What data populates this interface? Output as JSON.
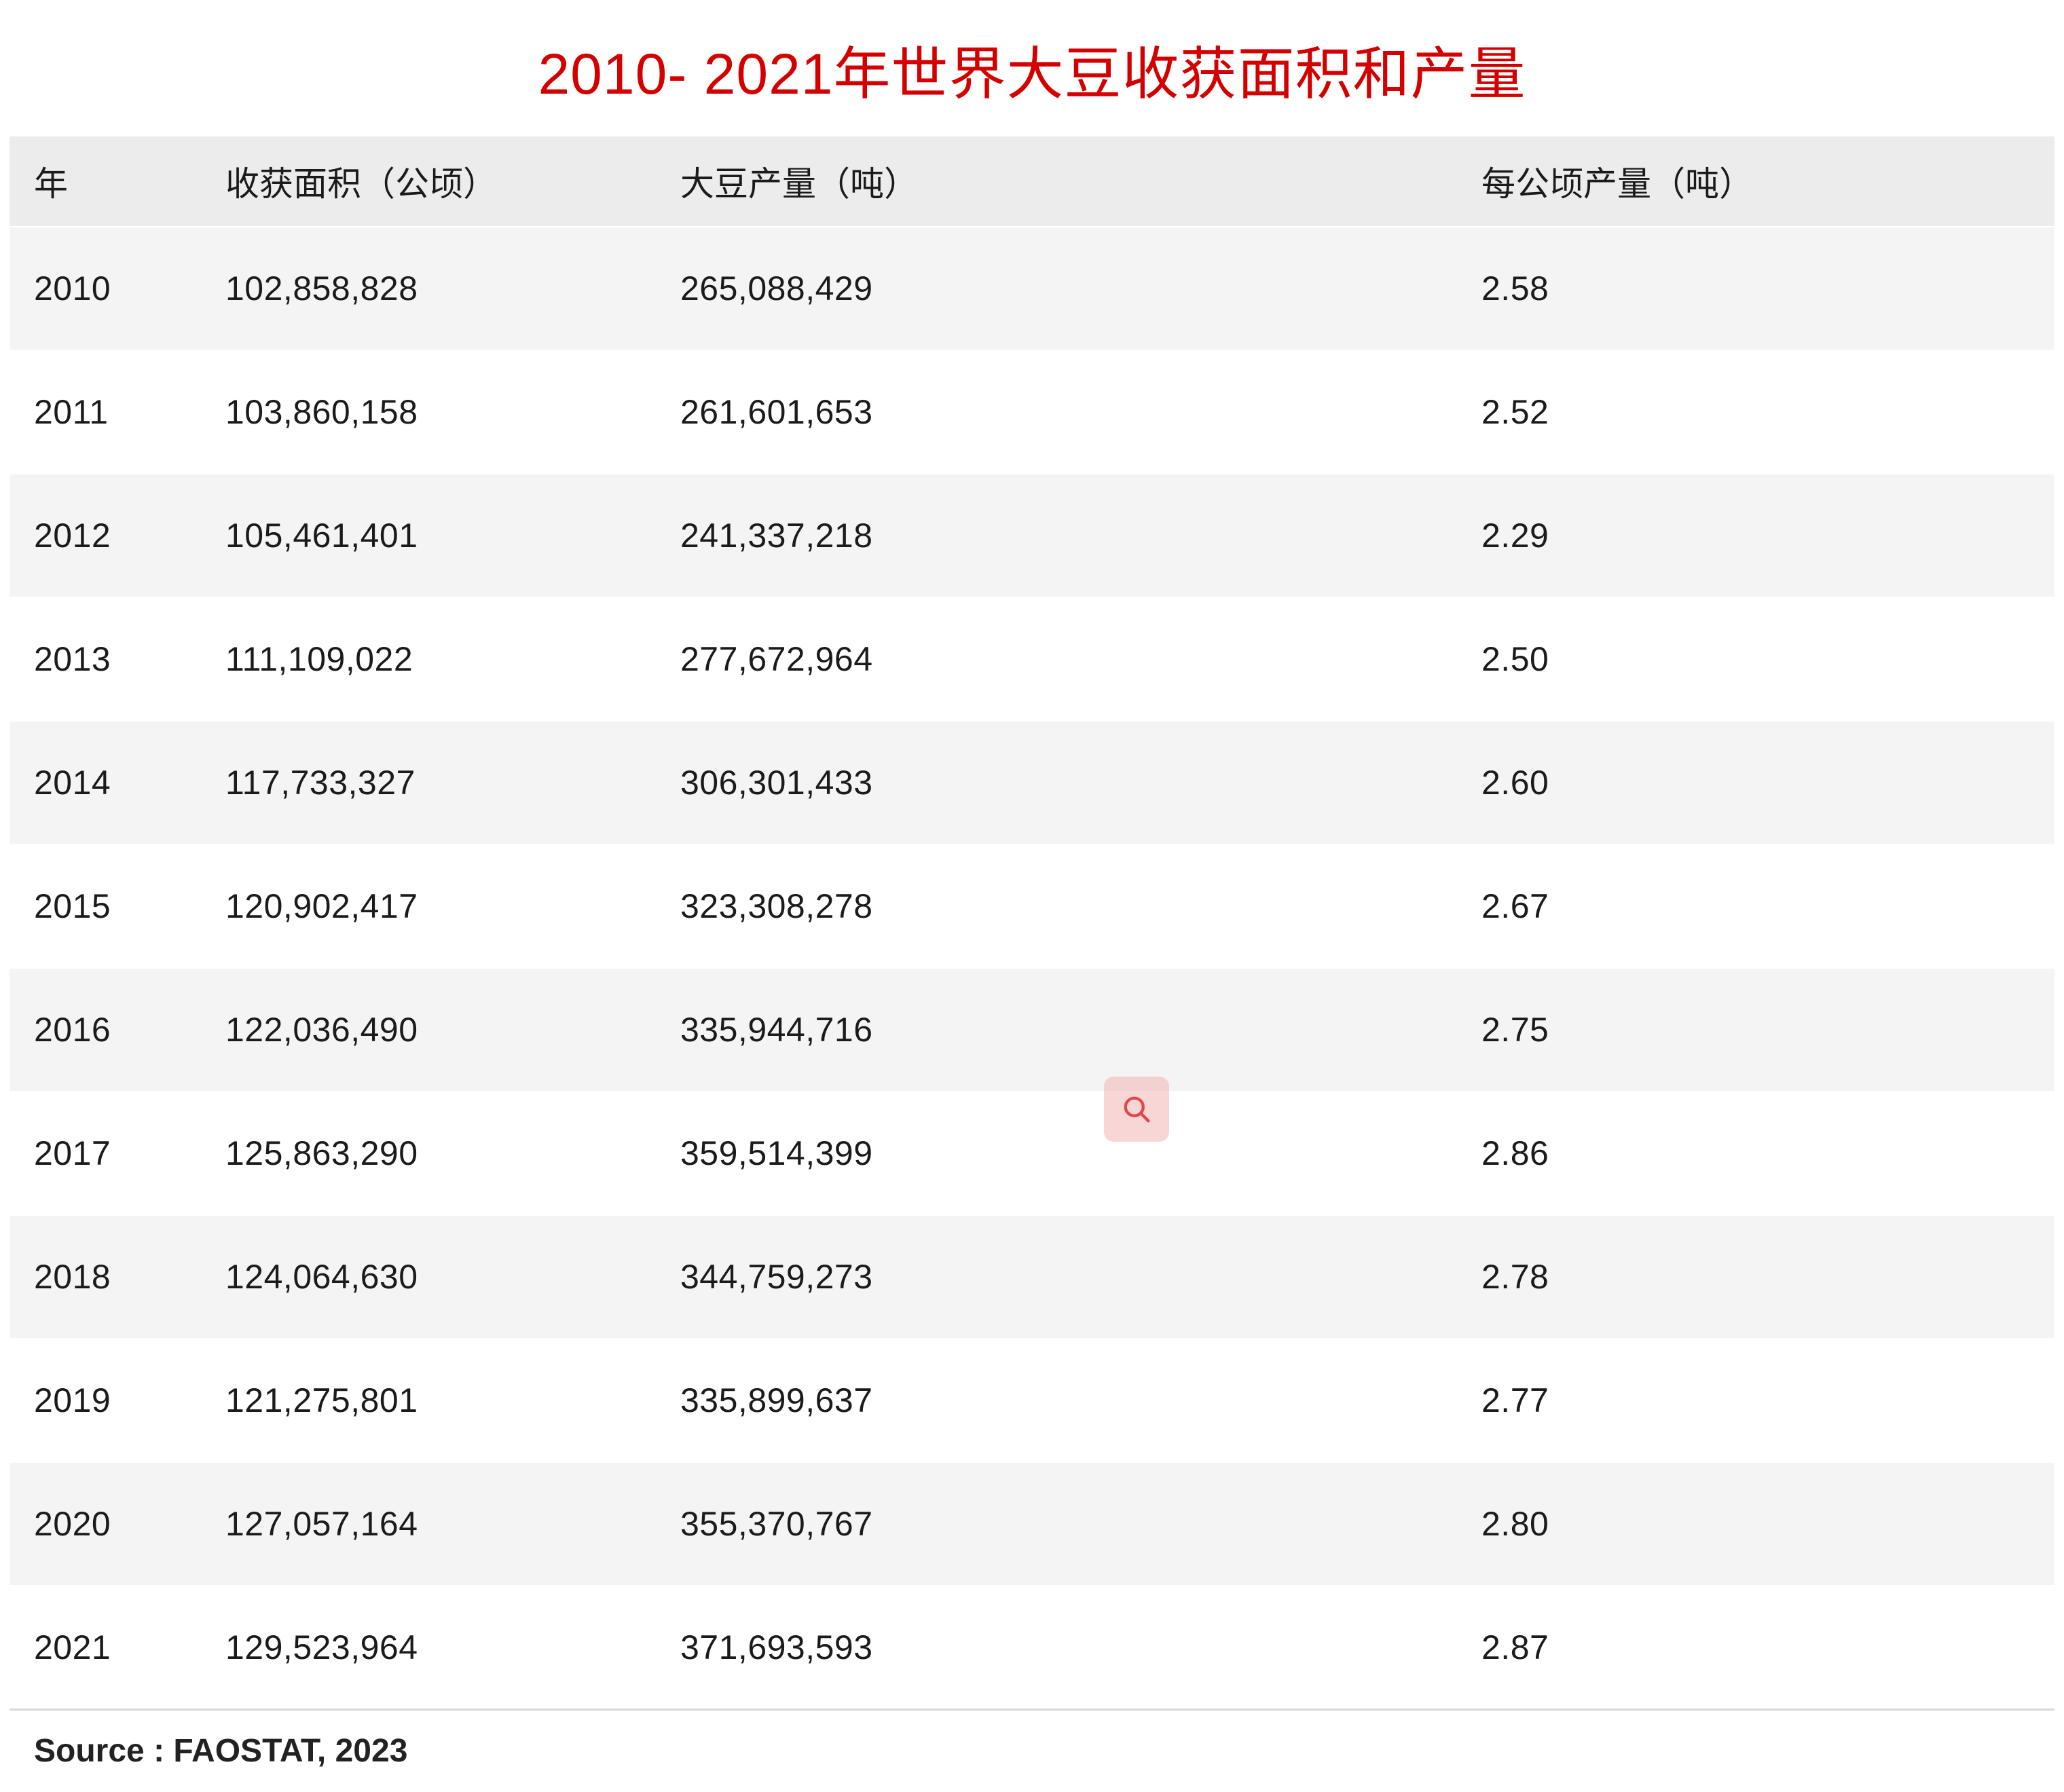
{
  "title": "2010- 2021年世界大豆收获面积和产量",
  "table": {
    "headers": [
      "年",
      "收获面积（公顷）",
      "大豆产量（吨）",
      "每公顷产量（吨）"
    ],
    "rows": [
      [
        "2010",
        "102,858,828",
        "265,088,429",
        "2.58"
      ],
      [
        "2011",
        "103,860,158",
        "261,601,653",
        "2.52"
      ],
      [
        "2012",
        "105,461,401",
        "241,337,218",
        "2.29"
      ],
      [
        "2013",
        "111,109,022",
        "277,672,964",
        "2.50"
      ],
      [
        "2014",
        "117,733,327",
        "306,301,433",
        "2.60"
      ],
      [
        "2015",
        "120,902,417",
        "323,308,278",
        "2.67"
      ],
      [
        "2016",
        "122,036,490",
        "335,944,716",
        "2.75"
      ],
      [
        "2017",
        "125,863,290",
        "359,514,399",
        "2.86"
      ],
      [
        "2018",
        "124,064,630",
        "344,759,273",
        "2.78"
      ],
      [
        "2019",
        "121,275,801",
        "335,899,637",
        "2.77"
      ],
      [
        "2020",
        "127,057,164",
        "355,370,767",
        "2.80"
      ],
      [
        "2021",
        "129,523,964",
        "371,693,593",
        "2.87"
      ]
    ]
  },
  "source": "Source : FAOSTAT, 2023",
  "icons": {
    "search": "magnifier"
  },
  "colors": {
    "title_red": "#d40000",
    "header_bg": "#ececec",
    "row_stripe_bg": "#f4f4f4",
    "text": "#1b1b1b",
    "search_badge_bg": "#f4b4b4",
    "search_glyph": "#e04848"
  },
  "chart_data": {
    "type": "table",
    "title": "2010- 2021年世界大豆收获面积和产量",
    "columns": [
      "年",
      "收获面积（公顷）",
      "大豆产量（吨）",
      "每公顷产量（吨）"
    ],
    "rows": [
      [
        2010,
        102858828,
        265088429,
        2.58
      ],
      [
        2011,
        103860158,
        261601653,
        2.52
      ],
      [
        2012,
        105461401,
        241337218,
        2.29
      ],
      [
        2013,
        111109022,
        277672964,
        2.5
      ],
      [
        2014,
        117733327,
        306301433,
        2.6
      ],
      [
        2015,
        120902417,
        323308278,
        2.67
      ],
      [
        2016,
        122036490,
        335944716,
        2.75
      ],
      [
        2017,
        125863290,
        359514399,
        2.86
      ],
      [
        2018,
        124064630,
        344759273,
        2.78
      ],
      [
        2019,
        121275801,
        335899637,
        2.77
      ],
      [
        2020,
        127057164,
        355370767,
        2.8
      ],
      [
        2021,
        129523964,
        371693593,
        2.87
      ]
    ],
    "source": "Source : FAOSTAT, 2023",
    "layout_hints": {
      "striped_rows": true,
      "header_background": "#ececec",
      "title_color": "#d40000"
    }
  }
}
